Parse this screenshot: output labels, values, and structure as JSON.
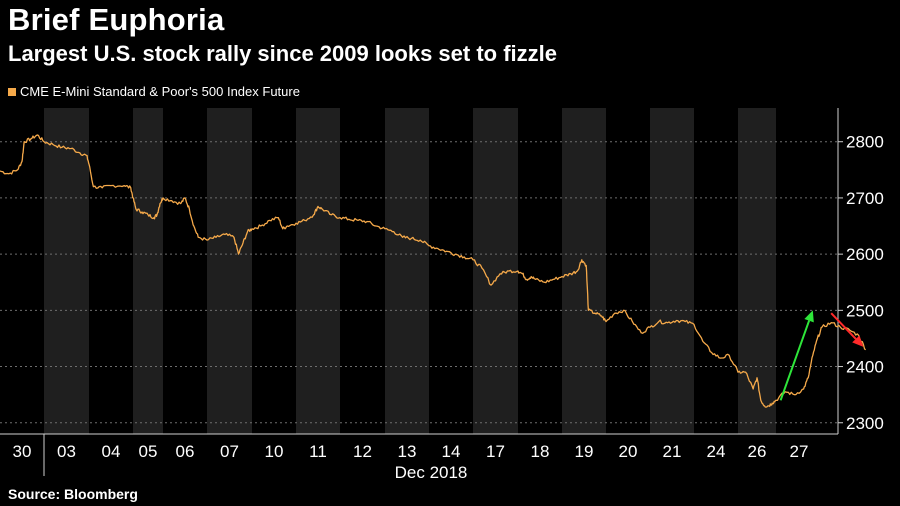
{
  "title": "Brief Euphoria",
  "subtitle": "Largest U.S. stock rally since 2009 looks set to fizzle",
  "source": "Source: Bloomberg",
  "colors": {
    "background": "#000000",
    "shade": "#1f1f1f",
    "line": "#f5a94a",
    "grid": "#6e6e6e",
    "text": "#ffffff",
    "up_arrow": "#2ee63a",
    "down_arrow": "#ff2a2a"
  },
  "chart_data": {
    "type": "line",
    "series_name": "CME E-Mini Standard & Poor's 500 Index Future",
    "x_labels": [
      "30",
      "03",
      "04",
      "05",
      "06",
      "07",
      "10",
      "11",
      "12",
      "13",
      "14",
      "17",
      "18",
      "19",
      "20",
      "21",
      "24",
      "26",
      "27"
    ],
    "x_month_label": "Dec 2018",
    "y_ticks": [
      2300,
      2400,
      2500,
      2600,
      2700,
      2800
    ],
    "ylim": [
      2280,
      2860
    ],
    "shaded_sessions": [
      "03",
      "05",
      "07",
      "11",
      "13",
      "17",
      "19",
      "21",
      "26"
    ],
    "price_points": [
      [
        0.0,
        2748
      ],
      [
        0.2,
        2743
      ],
      [
        0.4,
        2750
      ],
      [
        0.5,
        2765
      ],
      [
        0.55,
        2800
      ],
      [
        0.7,
        2805
      ],
      [
        0.85,
        2812
      ],
      [
        1.0,
        2800
      ],
      [
        1.2,
        2795
      ],
      [
        1.4,
        2790
      ],
      [
        1.6,
        2788
      ],
      [
        1.8,
        2780
      ],
      [
        1.95,
        2775
      ],
      [
        2.0,
        2760
      ],
      [
        2.1,
        2720
      ],
      [
        2.3,
        2718
      ],
      [
        2.5,
        2722
      ],
      [
        2.8,
        2722
      ],
      [
        2.95,
        2718
      ],
      [
        3.0,
        2700
      ],
      [
        3.1,
        2680
      ],
      [
        3.3,
        2675
      ],
      [
        3.5,
        2670
      ],
      [
        3.7,
        2665
      ],
      [
        3.8,
        2670
      ],
      [
        3.9,
        2690
      ],
      [
        4.0,
        2700
      ],
      [
        4.2,
        2695
      ],
      [
        4.4,
        2690
      ],
      [
        4.5,
        2700
      ],
      [
        4.6,
        2680
      ],
      [
        4.7,
        2650
      ],
      [
        4.8,
        2630
      ],
      [
        5.0,
        2625
      ],
      [
        5.2,
        2630
      ],
      [
        5.4,
        2635
      ],
      [
        5.6,
        2630
      ],
      [
        5.7,
        2600
      ],
      [
        5.8,
        2620
      ],
      [
        5.9,
        2640
      ],
      [
        6.0,
        2645
      ],
      [
        6.2,
        2650
      ],
      [
        6.4,
        2660
      ],
      [
        6.6,
        2665
      ],
      [
        6.7,
        2645
      ],
      [
        6.8,
        2650
      ],
      [
        7.0,
        2655
      ],
      [
        7.2,
        2660
      ],
      [
        7.4,
        2670
      ],
      [
        7.5,
        2685
      ],
      [
        7.6,
        2680
      ],
      [
        7.8,
        2670
      ],
      [
        8.0,
        2665
      ],
      [
        8.2,
        2662
      ],
      [
        8.4,
        2660
      ],
      [
        8.6,
        2658
      ],
      [
        8.8,
        2650
      ],
      [
        9.0,
        2645
      ],
      [
        9.2,
        2640
      ],
      [
        9.4,
        2630
      ],
      [
        9.6,
        2628
      ],
      [
        9.8,
        2625
      ],
      [
        10.0,
        2615
      ],
      [
        10.2,
        2610
      ],
      [
        10.4,
        2605
      ],
      [
        10.6,
        2600
      ],
      [
        10.8,
        2595
      ],
      [
        11.0,
        2590
      ],
      [
        11.2,
        2575
      ],
      [
        11.4,
        2545
      ],
      [
        11.6,
        2565
      ],
      [
        11.8,
        2570
      ],
      [
        12.0,
        2570
      ],
      [
        12.1,
        2565
      ],
      [
        12.2,
        2555
      ],
      [
        12.3,
        2560
      ],
      [
        12.4,
        2555
      ],
      [
        12.6,
        2550
      ],
      [
        12.8,
        2555
      ],
      [
        13.0,
        2560
      ],
      [
        13.2,
        2565
      ],
      [
        13.35,
        2570
      ],
      [
        13.45,
        2590
      ],
      [
        13.55,
        2580
      ],
      [
        13.6,
        2500
      ],
      [
        13.75,
        2495
      ],
      [
        13.9,
        2490
      ],
      [
        14.0,
        2480
      ],
      [
        14.2,
        2495
      ],
      [
        14.4,
        2500
      ],
      [
        14.6,
        2480
      ],
      [
        14.8,
        2460
      ],
      [
        15.0,
        2470
      ],
      [
        15.2,
        2480
      ],
      [
        15.4,
        2478
      ],
      [
        15.6,
        2482
      ],
      [
        15.8,
        2480
      ],
      [
        16.0,
        2475
      ],
      [
        16.2,
        2445
      ],
      [
        16.4,
        2425
      ],
      [
        16.6,
        2415
      ],
      [
        16.8,
        2420
      ],
      [
        17.0,
        2390
      ],
      [
        17.2,
        2390
      ],
      [
        17.4,
        2360
      ],
      [
        17.5,
        2380
      ],
      [
        17.6,
        2340
      ],
      [
        17.7,
        2330
      ],
      [
        17.8,
        2330
      ],
      [
        17.9,
        2335
      ],
      [
        18.0,
        2340
      ],
      [
        18.2,
        2355
      ],
      [
        18.4,
        2350
      ],
      [
        18.6,
        2360
      ],
      [
        18.7,
        2380
      ],
      [
        18.8,
        2420
      ],
      [
        18.9,
        2450
      ],
      [
        19.0,
        2470
      ],
      [
        19.2,
        2478
      ],
      [
        19.4,
        2470
      ],
      [
        19.6,
        2465
      ],
      [
        19.8,
        2455
      ],
      [
        19.95,
        2430
      ]
    ],
    "annotations": [
      {
        "type": "arrow",
        "color": "up_arrow",
        "from": [
          18.1,
          2340
        ],
        "to": [
          18.8,
          2500
        ]
      },
      {
        "type": "arrow",
        "color": "down_arrow",
        "from": [
          19.2,
          2495
        ],
        "to": [
          19.9,
          2435
        ]
      }
    ]
  }
}
